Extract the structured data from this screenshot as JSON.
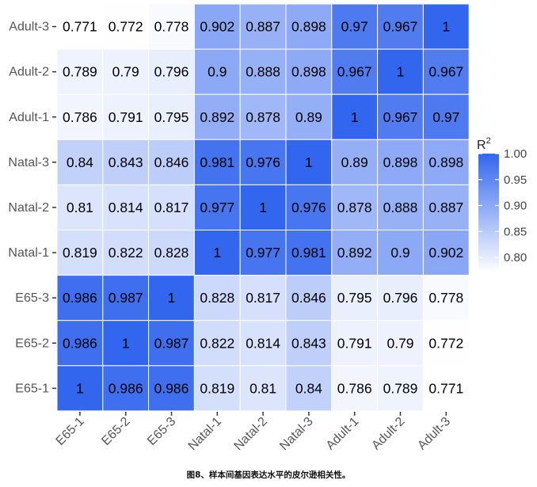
{
  "chart_data": {
    "type": "heatmap",
    "title": "",
    "xlabel": "",
    "ylabel": "",
    "x_labels": [
      "E65-1",
      "E65-2",
      "E65-3",
      "Natal-1",
      "Natal-2",
      "Natal-3",
      "Adult-1",
      "Adult-2",
      "Adult-3"
    ],
    "y_labels_top_to_bottom": [
      "Adult-3",
      "Adult-2",
      "Adult-1",
      "Natal-3",
      "Natal-2",
      "Natal-1",
      "E65-3",
      "E65-2",
      "E65-1"
    ],
    "values": [
      [
        "0.771",
        "0.772",
        "0.778",
        "0.902",
        "0.887",
        "0.898",
        "0.97",
        "0.967",
        "1"
      ],
      [
        "0.789",
        "0.79",
        "0.796",
        "0.9",
        "0.888",
        "0.898",
        "0.967",
        "1",
        "0.967"
      ],
      [
        "0.786",
        "0.791",
        "0.795",
        "0.892",
        "0.878",
        "0.89",
        "1",
        "0.967",
        "0.97"
      ],
      [
        "0.84",
        "0.843",
        "0.846",
        "0.981",
        "0.976",
        "1",
        "0.89",
        "0.898",
        "0.898"
      ],
      [
        "0.81",
        "0.814",
        "0.817",
        "0.977",
        "1",
        "0.976",
        "0.878",
        "0.888",
        "0.887"
      ],
      [
        "0.819",
        "0.822",
        "0.828",
        "1",
        "0.977",
        "0.981",
        "0.892",
        "0.9",
        "0.902"
      ],
      [
        "0.986",
        "0.987",
        "1",
        "0.828",
        "0.817",
        "0.846",
        "0.795",
        "0.796",
        "0.778"
      ],
      [
        "0.986",
        "1",
        "0.987",
        "0.822",
        "0.814",
        "0.843",
        "0.791",
        "0.79",
        "0.772"
      ],
      [
        "1",
        "0.986",
        "0.986",
        "0.819",
        "0.81",
        "0.84",
        "0.786",
        "0.789",
        "0.771"
      ]
    ],
    "color_scale": {
      "low_color": "#ffffff",
      "high_color": "#3366ee",
      "range": [
        0.771,
        1.0
      ]
    },
    "legend": {
      "title": "R",
      "title_superscript": "2",
      "ticks": [
        "1.00",
        "0.95",
        "0.90",
        "0.85",
        "0.80"
      ],
      "placement": "right"
    },
    "grid": true
  },
  "caption": "图8、样本间基因表达水平的皮尔逊相关性。"
}
